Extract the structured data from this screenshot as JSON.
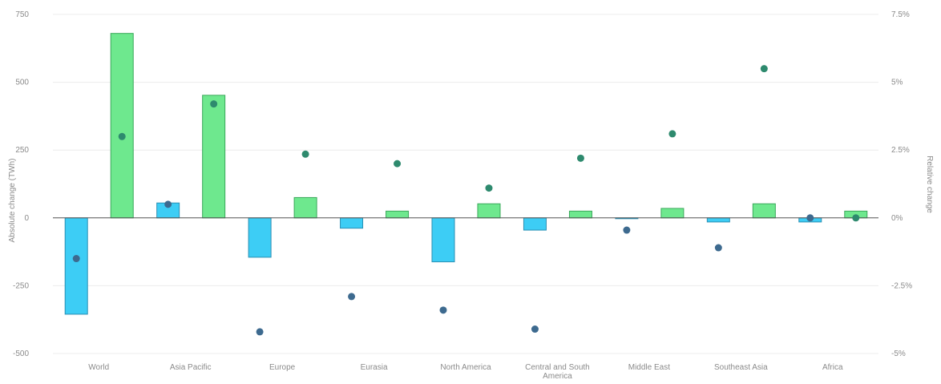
{
  "chart_data": {
    "type": "bar",
    "categories": [
      "World",
      "Asia Pacific",
      "Europe",
      "Eurasia",
      "North America",
      "Central and South America",
      "Middle East",
      "Southeast Asia",
      "Africa"
    ],
    "left_axis": {
      "label": "Absolute change (TWh)",
      "ylim": [
        -500,
        750
      ],
      "ticks": [
        "750",
        "500",
        "250",
        "0",
        "-250",
        "-500"
      ],
      "tick_values": [
        750,
        500,
        250,
        0,
        -250,
        -500
      ]
    },
    "right_axis": {
      "label": "Relative change",
      "ylim": [
        -5,
        7.5
      ],
      "ticks": [
        "7.5%",
        "5%",
        "2.5%",
        "0%",
        "-2.5%",
        "-5%"
      ],
      "tick_values": [
        7.5,
        5,
        2.5,
        0,
        -2.5,
        -5
      ]
    },
    "series": [
      {
        "kind": "bar",
        "axis": "left",
        "color": "#3dcdf5",
        "stroke": "#2a8fb3",
        "values": [
          -355,
          55,
          -145,
          -38,
          -162,
          -45,
          -3,
          -15,
          -15
        ]
      },
      {
        "kind": "bar",
        "axis": "left",
        "color": "#6ee88e",
        "stroke": "#3aa85a",
        "values": [
          680,
          452,
          75,
          25,
          52,
          25,
          35,
          52,
          25
        ]
      },
      {
        "kind": "dot",
        "axis": "right",
        "color": "#3d6a8f",
        "values": [
          -1.5,
          0.5,
          -4.2,
          -2.9,
          -3.4,
          -4.1,
          -0.45,
          -1.1,
          0.0
        ]
      },
      {
        "kind": "dot",
        "axis": "right",
        "color": "#2e8a6e",
        "values": [
          3.0,
          4.2,
          2.35,
          2.0,
          1.1,
          2.2,
          3.1,
          5.5,
          0.0
        ]
      }
    ],
    "grid": true,
    "legend": "none"
  }
}
